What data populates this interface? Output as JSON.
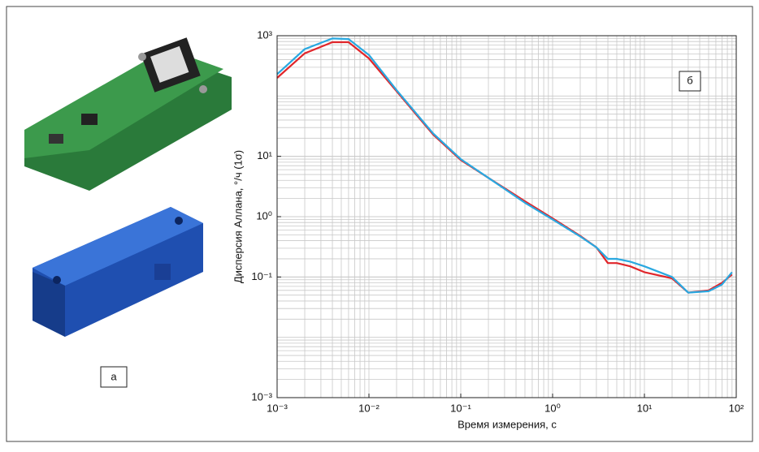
{
  "chart_data": {
    "type": "line",
    "xlabel": "Время измерения, с",
    "ylabel": "Дисперсия Аллана, °/ч (1σ)",
    "panel_labels": [
      "а",
      "б"
    ],
    "log_x": true,
    "log_y": true,
    "grid": true,
    "xlim": [
      0.001,
      100
    ],
    "xticks": [
      {
        "value": 0.001,
        "label": "10⁻³"
      },
      {
        "value": 0.01,
        "label": "10⁻²"
      },
      {
        "value": 0.1,
        "label": "10⁻¹"
      },
      {
        "value": 1,
        "label": "10⁰"
      },
      {
        "value": 10,
        "label": "10¹"
      },
      {
        "value": 100,
        "label": "10²"
      }
    ],
    "ylim": [
      0.001,
      1000
    ],
    "yticks": [
      {
        "value": 1000,
        "label": "10³"
      },
      {
        "value": 10,
        "label": "10¹"
      },
      {
        "value": 1,
        "label": "10⁰"
      },
      {
        "value": 0.1,
        "label": "10⁻¹"
      },
      {
        "value": 0.001,
        "label": "10⁻³"
      }
    ],
    "x": [
      0.001,
      0.002,
      0.004,
      0.006,
      0.01,
      0.02,
      0.05,
      0.1,
      0.2,
      0.5,
      1,
      2,
      3,
      4,
      5,
      7,
      10,
      20,
      30,
      50,
      70,
      90
    ],
    "series": [
      {
        "color": "#e0262b",
        "values": [
          200,
          510,
          780,
          780,
          420,
          120,
          23,
          8.7,
          4.4,
          1.8,
          0.94,
          0.48,
          0.31,
          0.17,
          0.17,
          0.15,
          0.12,
          0.095,
          0.055,
          0.06,
          0.08,
          0.11
        ]
      },
      {
        "color": "#29a8e0",
        "values": [
          230,
          600,
          900,
          880,
          480,
          125,
          24,
          9,
          4.4,
          1.7,
          0.9,
          0.47,
          0.31,
          0.2,
          0.2,
          0.18,
          0.15,
          0.1,
          0.055,
          0.058,
          0.075,
          0.12
        ]
      }
    ]
  }
}
